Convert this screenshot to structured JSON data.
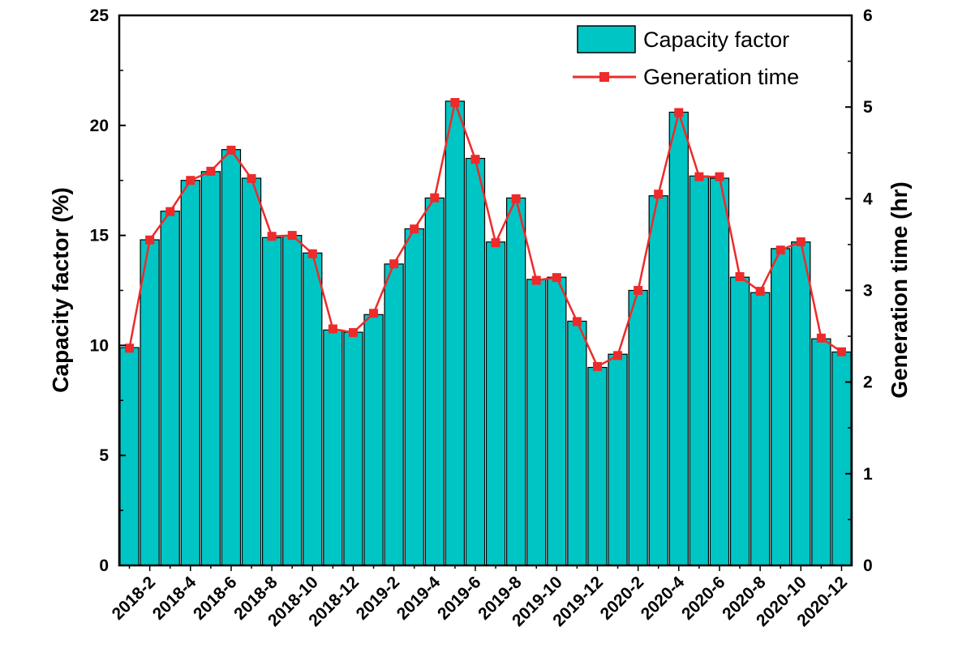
{
  "chart_data": {
    "type": "bar+line",
    "categories": [
      "2018-1",
      "2018-2",
      "2018-3",
      "2018-4",
      "2018-5",
      "2018-6",
      "2018-7",
      "2018-8",
      "2018-9",
      "2018-10",
      "2018-11",
      "2018-12",
      "2019-1",
      "2019-2",
      "2019-3",
      "2019-4",
      "2019-5",
      "2019-6",
      "2019-7",
      "2019-8",
      "2019-9",
      "2019-10",
      "2019-11",
      "2019-12",
      "2020-1",
      "2020-2",
      "2020-3",
      "2020-4",
      "2020-5",
      "2020-6",
      "2020-7",
      "2020-8",
      "2020-9",
      "2020-10",
      "2020-11",
      "2020-12"
    ],
    "tick_labels": [
      "2018-2",
      "2018-4",
      "2018-6",
      "2018-8",
      "2018-10",
      "2018-12",
      "2019-2",
      "2019-4",
      "2019-6",
      "2019-8",
      "2019-10",
      "2019-12",
      "2020-2",
      "2020-4",
      "2020-6",
      "2020-8",
      "2020-10",
      "2020-12"
    ],
    "series": [
      {
        "name": "Capacity factor",
        "type": "bar",
        "axis": "left",
        "color": "#00c5c5",
        "values": [
          9.9,
          14.8,
          16.1,
          17.5,
          17.9,
          18.9,
          17.6,
          14.9,
          15.0,
          14.2,
          10.7,
          10.6,
          11.4,
          13.7,
          15.3,
          16.7,
          21.1,
          18.5,
          14.7,
          16.7,
          13.0,
          13.1,
          11.1,
          9.0,
          9.6,
          12.5,
          16.8,
          20.6,
          17.7,
          17.6,
          13.1,
          12.4,
          14.4,
          14.7,
          10.3,
          9.7
        ]
      },
      {
        "name": "Generation time",
        "type": "line",
        "axis": "right",
        "color": "#ee2a2a",
        "values": [
          2.37,
          3.55,
          3.86,
          4.2,
          4.3,
          4.53,
          4.22,
          3.59,
          3.6,
          3.4,
          2.58,
          2.54,
          2.75,
          3.29,
          3.67,
          4.01,
          5.05,
          4.43,
          3.52,
          4.0,
          3.11,
          3.14,
          2.66,
          2.17,
          2.29,
          3.0,
          4.05,
          4.94,
          4.24,
          4.24,
          3.15,
          2.99,
          3.44,
          3.53,
          2.48,
          2.33
        ]
      }
    ],
    "ylabel_left": "Capacity factor (%)",
    "ylabel_right": "Generation time (hr)",
    "ylim_left": [
      0,
      25
    ],
    "ylim_right": [
      0,
      6
    ],
    "yticks_left": [
      "0",
      "5",
      "10",
      "15",
      "20",
      "25"
    ],
    "yticks_right": [
      "0",
      "1",
      "2",
      "3",
      "4",
      "5",
      "6"
    ],
    "legend": [
      "Capacity factor",
      "Generation time"
    ],
    "legend_position": "top-right"
  }
}
